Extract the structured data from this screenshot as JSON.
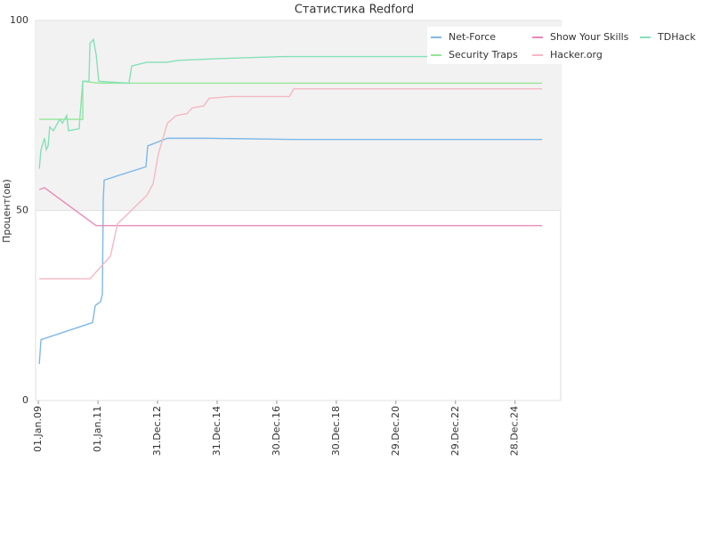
{
  "chart_data": {
    "type": "line",
    "title": "Статистика Redford",
    "y_label": "Процент(ов)",
    "xlim": [
      "2008-11-28",
      "2026-07-10"
    ],
    "xticks": [
      {
        "value": "2009-01-01",
        "label": "01.Jan.09"
      },
      {
        "value": "2011-01-01",
        "label": "01.Jan.11"
      },
      {
        "value": "2012-12-31",
        "label": "31.Dec.12"
      },
      {
        "value": "2014-12-31",
        "label": "31.Dec.14"
      },
      {
        "value": "2016-12-30",
        "label": "30.Dec.16"
      },
      {
        "value": "2018-12-30",
        "label": "30.Dec.18"
      },
      {
        "value": "2020-12-29",
        "label": "29.Dec.20"
      },
      {
        "value": "2022-12-29",
        "label": "29.Dec.22"
      },
      {
        "value": "2024-12-28",
        "label": "28.Dec.24"
      }
    ],
    "ylim": [
      0,
      100
    ],
    "yticks": [
      0,
      50,
      100
    ],
    "grid": true,
    "legend": "top-right",
    "series": [
      {
        "name": "Net-Force",
        "color": "#7fb8e8",
        "x": [
          "2009-01-12",
          "2009-02-02",
          "2010-10-27",
          "2010-11-29",
          "2011-02-02",
          "2011-02-24",
          "2011-03-07",
          "2011-03-18",
          "2012-08-11",
          "2012-09-02",
          "2013-05-01",
          "2014-09-23",
          "2017-07-27",
          "2025-11-24"
        ],
        "values": [
          9.6,
          16,
          20.5,
          25,
          26,
          28,
          53,
          58,
          61.5,
          67,
          69,
          69,
          68.7,
          68.7
        ]
      },
      {
        "name": "Security Traps",
        "color": "#94e694",
        "x": [
          "2009-01-12",
          "2010-06-29",
          "2010-06-29",
          "2011-01-11",
          "2025-11-24"
        ],
        "values": [
          74,
          74,
          84,
          83.5,
          83.5
        ]
      },
      {
        "name": "Show Your Skills",
        "color": "#e88ab8",
        "x": [
          "2009-01-12",
          "2009-03-17",
          "2010-12-10",
          "2025-11-24"
        ],
        "values": [
          55.5,
          56,
          46,
          46
        ]
      },
      {
        "name": "Hacker.org",
        "color": "#f5b8c2",
        "x": [
          "2009-01-12",
          "2010-09-25",
          "2011-06-03",
          "2011-08-29",
          "2012-08-22",
          "2012-11-06",
          "2013-01-11",
          "2013-05-01",
          "2013-08-18",
          "2013-12-27",
          "2014-03-01",
          "2014-07-19",
          "2014-09-23",
          "2015-06-25",
          "2017-06-03",
          "2017-07-27",
          "2025-11-24"
        ],
        "values": [
          32,
          32,
          38,
          46.5,
          54,
          57,
          65,
          73,
          75,
          75.5,
          77,
          77.5,
          79.5,
          80,
          80,
          82,
          82
        ]
      },
      {
        "name": "TDHack",
        "color": "#86e0b8",
        "x": [
          "2009-01-12",
          "2009-02-02",
          "2009-03-17",
          "2009-04-08",
          "2009-04-30",
          "2009-05-21",
          "2009-07-05",
          "2009-09-19",
          "2009-10-22",
          "2009-12-15",
          "2010-01-05",
          "2010-05-15",
          "2010-06-07",
          "2010-06-29",
          "2010-09-13",
          "2010-09-25",
          "2010-11-07",
          "2010-12-10",
          "2011-01-11",
          "2012-01-16",
          "2012-02-18",
          "2012-08-22",
          "2013-05-01",
          "2013-09-09",
          "2015-03-08",
          "2017-03-18",
          "2025-11-24"
        ],
        "values": [
          61,
          66,
          69,
          66,
          67,
          72,
          71,
          74,
          73,
          75,
          71,
          71.5,
          78,
          84,
          84,
          94,
          95,
          91,
          84,
          83.5,
          88,
          89,
          89,
          89.5,
          90,
          90.5,
          90.5
        ]
      }
    ]
  }
}
